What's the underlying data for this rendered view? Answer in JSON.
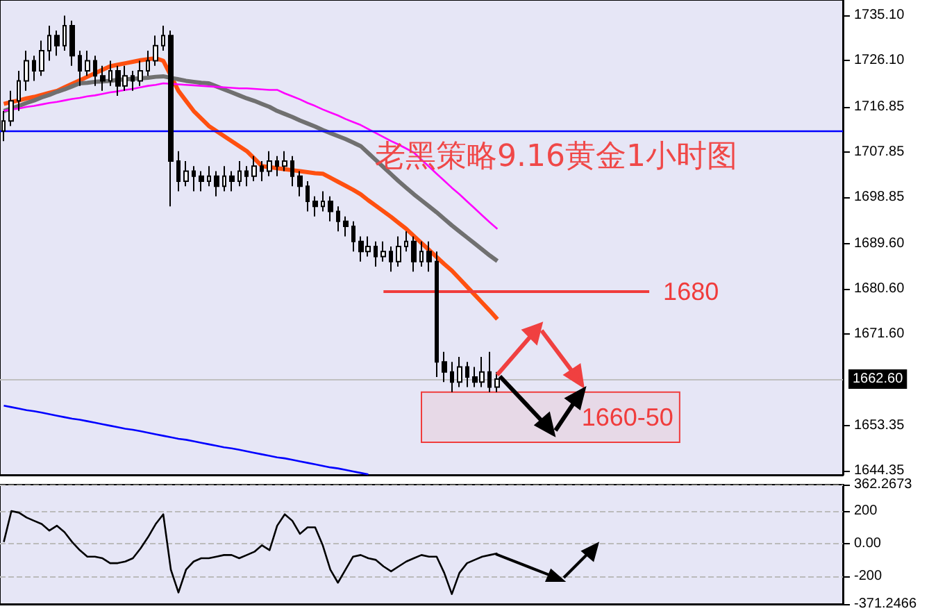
{
  "chart_data": [
    {
      "type": "candlestick",
      "title": "老黑策略9.16黄金1小时图",
      "tick_labels": "y",
      "grid": false,
      "categories": [
        null,
        null,
        null,
        null,
        null,
        null,
        null,
        null,
        null,
        null,
        null,
        null,
        null,
        null,
        null,
        null,
        null,
        null,
        null,
        null,
        null,
        null,
        null,
        null,
        null,
        null,
        null,
        null,
        null,
        null,
        null,
        null,
        null,
        null,
        null,
        null,
        null,
        null,
        null,
        null,
        null,
        null,
        null,
        null,
        null,
        null,
        null,
        null,
        null,
        null,
        null,
        null,
        null,
        null,
        null,
        null,
        null,
        null,
        null,
        null,
        null,
        null,
        null,
        null,
        null,
        null
      ],
      "ohlc": [
        [
          1712,
          1716,
          1710,
          1714
        ],
        [
          1714,
          1720,
          1713,
          1718
        ],
        [
          1718,
          1724,
          1716,
          1722
        ],
        [
          1722,
          1728,
          1720,
          1726
        ],
        [
          1726,
          1727,
          1722,
          1724
        ],
        [
          1724,
          1730,
          1723,
          1728
        ],
        [
          1728,
          1733,
          1726,
          1731
        ],
        [
          1731,
          1732,
          1727,
          1729
        ],
        [
          1729,
          1735,
          1728,
          1733
        ],
        [
          1733,
          1734,
          1725,
          1727
        ],
        [
          1727,
          1728,
          1721,
          1724
        ],
        [
          1724,
          1728,
          1723,
          1726
        ],
        [
          1726,
          1727,
          1721,
          1723
        ],
        [
          1723,
          1725,
          1720,
          1722
        ],
        [
          1722,
          1726,
          1721,
          1724
        ],
        [
          1724,
          1725,
          1719,
          1721
        ],
        [
          1721,
          1725,
          1720,
          1723
        ],
        [
          1723,
          1724,
          1720,
          1722
        ],
        [
          1722,
          1726,
          1721,
          1724
        ],
        [
          1724,
          1728,
          1723,
          1726
        ],
        [
          1726,
          1731,
          1725,
          1729
        ],
        [
          1729,
          1733,
          1728,
          1731
        ],
        [
          1731,
          1732,
          1697,
          1706
        ],
        [
          1706,
          1708,
          1700,
          1702
        ],
        [
          1702,
          1706,
          1701,
          1704
        ],
        [
          1704,
          1705,
          1700,
          1703
        ],
        [
          1703,
          1704,
          1700,
          1702
        ],
        [
          1702,
          1705,
          1701,
          1703
        ],
        [
          1703,
          1704,
          1699,
          1701
        ],
        [
          1701,
          1705,
          1700,
          1703
        ],
        [
          1703,
          1704,
          1700,
          1702
        ],
        [
          1702,
          1706,
          1701,
          1704
        ],
        [
          1704,
          1705,
          1701,
          1703
        ],
        [
          1703,
          1707,
          1702,
          1705
        ],
        [
          1705,
          1706,
          1702,
          1704
        ],
        [
          1704,
          1708,
          1703,
          1706
        ],
        [
          1706,
          1707,
          1703,
          1705
        ],
        [
          1705,
          1708,
          1704,
          1706
        ],
        [
          1706,
          1707,
          1701,
          1703
        ],
        [
          1703,
          1704,
          1699,
          1701
        ],
        [
          1701,
          1702,
          1696,
          1698
        ],
        [
          1698,
          1699,
          1695,
          1697
        ],
        [
          1697,
          1700,
          1696,
          1698
        ],
        [
          1698,
          1699,
          1694,
          1696
        ],
        [
          1696,
          1697,
          1692,
          1694
        ],
        [
          1694,
          1695,
          1691,
          1693
        ],
        [
          1693,
          1694,
          1688,
          1690
        ],
        [
          1690,
          1691,
          1686,
          1688
        ],
        [
          1688,
          1691,
          1687,
          1689
        ],
        [
          1689,
          1690,
          1685,
          1687
        ],
        [
          1687,
          1690,
          1686,
          1688
        ],
        [
          1688,
          1689,
          1684,
          1686
        ],
        [
          1686,
          1691,
          1685,
          1689
        ],
        [
          1689,
          1692,
          1688,
          1690
        ],
        [
          1690,
          1691,
          1684,
          1686
        ],
        [
          1686,
          1690,
          1685,
          1688
        ],
        [
          1688,
          1690,
          1684,
          1686
        ],
        [
          1686,
          1688,
          1663,
          1666
        ],
        [
          1666,
          1668,
          1662,
          1664
        ],
        [
          1664,
          1666,
          1660,
          1662
        ],
        [
          1662,
          1667,
          1661,
          1665
        ],
        [
          1665,
          1666,
          1661,
          1663
        ],
        [
          1663,
          1665,
          1661,
          1662
        ],
        [
          1662,
          1667,
          1661,
          1664
        ],
        [
          1664,
          1668,
          1660,
          1661
        ],
        [
          1661,
          1664,
          1660,
          1662.6
        ]
      ],
      "series": [
        {
          "type": "line",
          "color": "#ff5010",
          "values": [
            1717.4,
            1717.8,
            1718.1,
            1718.5,
            1718.8,
            1719.2,
            1719.6,
            1720,
            1720.7,
            1721.4,
            1722.1,
            1722.8,
            1723.5,
            1724.2,
            1724.9,
            1725.2,
            1725.5,
            1725.8,
            1726.1,
            1726.3,
            1726.5,
            1726,
            1723,
            1720,
            1718,
            1716,
            1714.5,
            1713,
            1712,
            1711,
            1710,
            1709,
            1708,
            1706.5,
            1705,
            1704.8,
            1704.6,
            1704.4,
            1704.2,
            1704,
            1703.8,
            1703.6,
            1703.5,
            1702.7,
            1701.9,
            1701.1,
            1700.3,
            1699.4,
            1698.2,
            1697.1,
            1696,
            1694.9,
            1693.7,
            1692.5,
            1691.1,
            1689.7,
            1688.3,
            1686.9,
            1685.5,
            1684.2,
            1682.6,
            1681,
            1679.4,
            1677.8,
            1676.2,
            1674.5
          ]
        },
        {
          "type": "line",
          "color": "#707070",
          "values": [
            1716,
            1716.5,
            1717,
            1717.6,
            1718.1,
            1718.7,
            1719.2,
            1719.8,
            1720.3,
            1720.9,
            1721.5,
            1721.6,
            1721.8,
            1721.9,
            1722,
            1722.2,
            1722.3,
            1722.4,
            1722.5,
            1722.6,
            1722.8,
            1722.9,
            1722.6,
            1722.3,
            1722,
            1721.8,
            1721.6,
            1721.5,
            1720.9,
            1720.3,
            1719.7,
            1719.1,
            1718.5,
            1718,
            1717.4,
            1716.8,
            1716,
            1715.4,
            1714.8,
            1714.1,
            1713.5,
            1712.9,
            1712.2,
            1711.6,
            1711,
            1710.4,
            1709.7,
            1709,
            1707.6,
            1706.2,
            1704.8,
            1703.4,
            1702,
            1700.7,
            1699.4,
            1698.2,
            1697,
            1695.8,
            1694.5,
            1693.2,
            1692,
            1690.8,
            1689.6,
            1688.4,
            1687.2,
            1686.1
          ]
        },
        {
          "type": "line",
          "color": "#ff00ff",
          "values": [
            1716,
            1716.3,
            1716.5,
            1716.8,
            1717,
            1717.3,
            1717.6,
            1717.8,
            1718.1,
            1718.4,
            1718.6,
            1718.9,
            1719.1,
            1719.4,
            1719.7,
            1719.9,
            1720.2,
            1720.4,
            1720.7,
            1721,
            1721.2,
            1721.5,
            1721.4,
            1721.3,
            1721.2,
            1721.1,
            1721,
            1720.9,
            1720.8,
            1720.7,
            1720.6,
            1720.5,
            1720.5,
            1720.4,
            1720.3,
            1720.2,
            1720.2,
            1719.5,
            1718.9,
            1718.3,
            1717.6,
            1717,
            1716.3,
            1715.7,
            1715.1,
            1714.4,
            1713.8,
            1713.2,
            1712.4,
            1711.6,
            1710.8,
            1710,
            1709.3,
            1708.5,
            1707.7,
            1706.3,
            1704.9,
            1703.5,
            1702.1,
            1700.7,
            1699.4,
            1698,
            1696.6,
            1695.2,
            1693.8,
            1692.5
          ]
        },
        {
          "type": "line",
          "color": "#0000ff",
          "values": [
            1657.3,
            1657.0,
            1656.7,
            1656.4,
            1656.2,
            1655.9,
            1655.6,
            1655.3,
            1655.0,
            1654.7,
            1654.5,
            1654.2,
            1653.9,
            1653.6,
            1653.3,
            1653.0,
            1652.7,
            1652.5,
            1652.2,
            1651.9,
            1651.6,
            1651.3,
            1651.0,
            1650.7,
            1650.5,
            1650.2,
            1649.9,
            1649.6,
            1649.3,
            1649.0,
            1648.8,
            1648.5,
            1648.2,
            1647.9,
            1647.6,
            1647.3,
            1647.0,
            1646.8,
            1646.5,
            1646.2,
            1645.9,
            1645.6,
            1645.3,
            1645.0,
            1644.8,
            1644.5,
            1644.2,
            1643.9,
            1643.6,
            null,
            null,
            null,
            null,
            null,
            null,
            null,
            null,
            null,
            null,
            null,
            null,
            null,
            null,
            null,
            null,
            null
          ]
        }
      ],
      "ylim": [
        1643.5,
        1738.1
      ],
      "yticks": [
        {
          "value": 1644.35,
          "label": "1644.35"
        },
        {
          "value": 1653.35,
          "label": "1653.35"
        },
        {
          "value": 1671.6,
          "label": "1671.60"
        },
        {
          "value": 1680.6,
          "label": "1680.60"
        },
        {
          "value": 1689.6,
          "label": "1689.60"
        },
        {
          "value": 1698.85,
          "label": "1698.85"
        },
        {
          "value": 1707.85,
          "label": "1707.85"
        },
        {
          "value": 1716.85,
          "label": "1716.85"
        },
        {
          "value": 1726.1,
          "label": "1726.10"
        },
        {
          "value": 1735.1,
          "label": "1735.10"
        }
      ],
      "ref_lines": [
        {
          "axis": "y",
          "value": 1680,
          "label": "1680",
          "color": "#f03c3c"
        },
        {
          "axis": "y",
          "value": 1662.6,
          "label": "1662.60",
          "color": "#c0c0c0"
        },
        {
          "axis": "y",
          "value": 1712,
          "label": null,
          "color": "#0000ff"
        }
      ],
      "bands": [
        {
          "axis": "y",
          "from": 1650,
          "to": 1660,
          "label": "1660-50",
          "color": "#f03c3c"
        }
      ]
    },
    {
      "type": "line",
      "tick_labels": "y",
      "grid": "y",
      "color": "#000000",
      "categories": [
        null,
        null,
        null,
        null,
        null,
        null,
        null,
        null,
        null,
        null,
        null,
        null,
        null,
        null,
        null,
        null,
        null,
        null,
        null,
        null,
        null,
        null,
        null,
        null,
        null,
        null,
        null,
        null,
        null,
        null,
        null,
        null,
        null,
        null,
        null,
        null,
        null,
        null,
        null,
        null,
        null,
        null,
        null,
        null,
        null,
        null,
        null,
        null,
        null,
        null,
        null,
        null,
        null,
        null,
        null,
        null,
        null,
        null,
        null,
        null,
        null,
        null,
        null,
        null,
        null,
        null
      ],
      "values": [
        10,
        200,
        190,
        160,
        140,
        120,
        80,
        110,
        70,
        10,
        -40,
        -80,
        -80,
        -90,
        -120,
        -120,
        -110,
        -90,
        -30,
        40,
        120,
        180,
        -160,
        -300,
        -160,
        -110,
        -90,
        -90,
        -80,
        -70,
        -70,
        -90,
        -70,
        -50,
        -10,
        -40,
        110,
        180,
        140,
        60,
        100,
        100,
        -10,
        -160,
        -240,
        -160,
        -80,
        -70,
        -90,
        -100,
        -140,
        -170,
        -140,
        -110,
        -90,
        -70,
        -80,
        -80,
        -180,
        -310,
        -180,
        -120,
        -100,
        -80,
        -70,
        -60
      ],
      "ylim": [
        -371.2466,
        362.2673
      ],
      "yticks": [
        {
          "value": -371.2466,
          "label": "-371.2466"
        },
        -200,
        {
          "value": 0,
          "label": "0.00"
        },
        200,
        {
          "value": 362.2673,
          "label": "362.2673"
        }
      ]
    }
  ]
}
